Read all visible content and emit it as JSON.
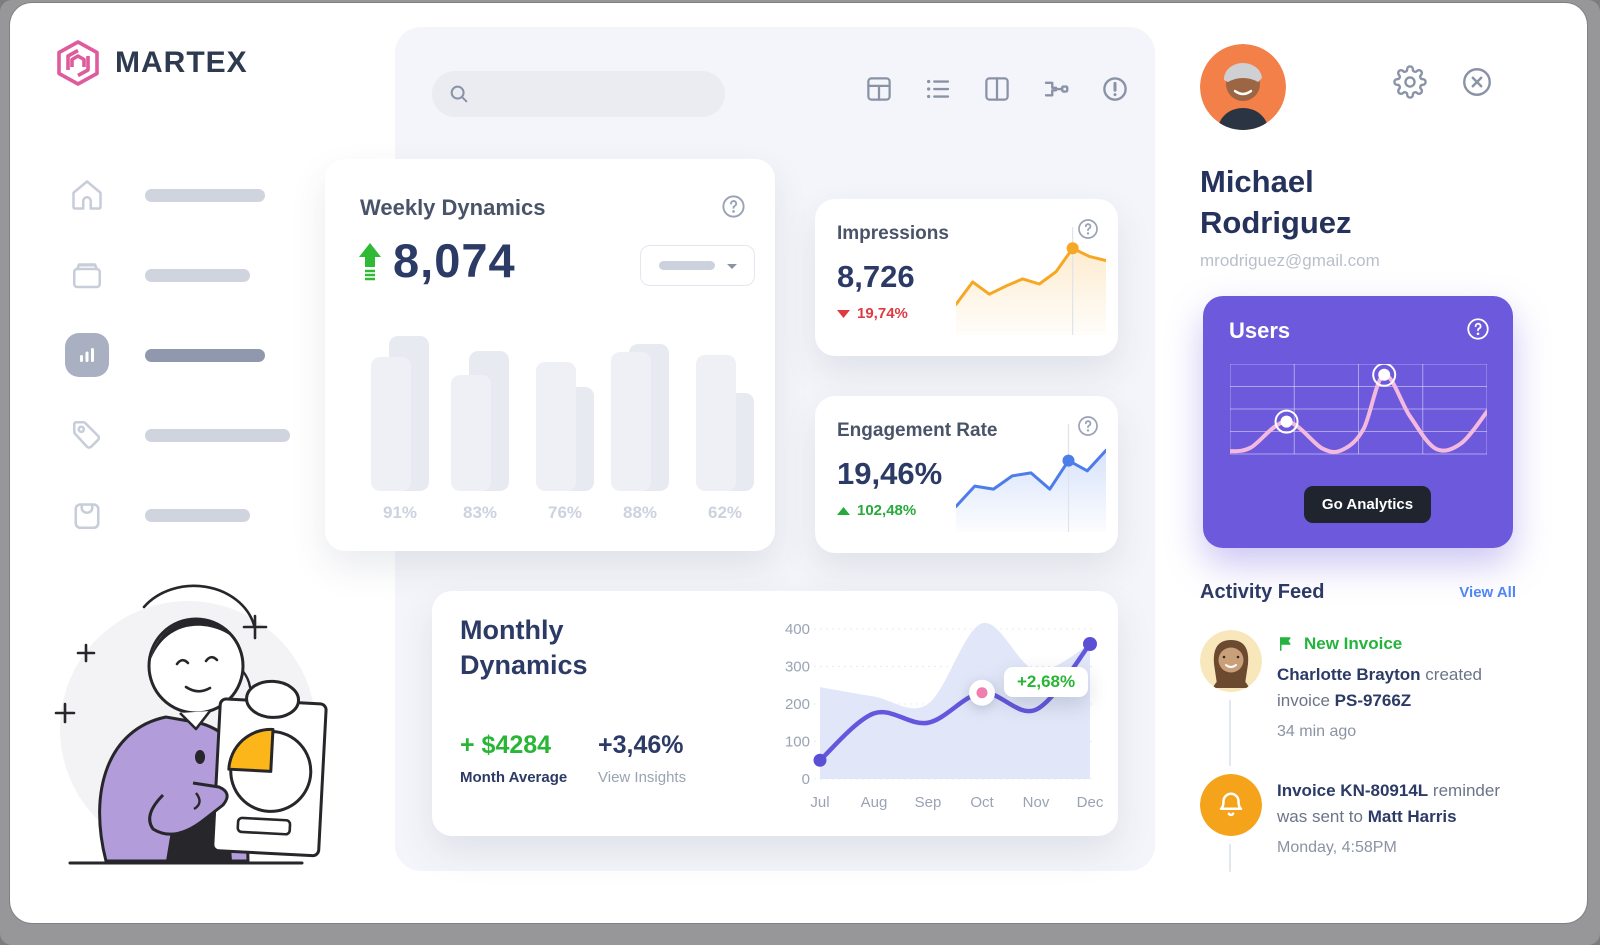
{
  "colors": {
    "accent_purple": "#6d59dc",
    "navy": "#2c3a66",
    "green": "#29b536",
    "red": "#dd3b41",
    "orange": "#f6a723",
    "blue": "#4c7de8",
    "link_blue": "#4f86f7",
    "pink": "#ee7fae",
    "logo_pink": "#de5c9d"
  },
  "logo": {
    "text": "MARTEX"
  },
  "sidebar": {
    "items": [
      {
        "icon": "home-icon",
        "active": false
      },
      {
        "icon": "archive-icon",
        "active": false
      },
      {
        "icon": "bar-chart-icon",
        "active": true
      },
      {
        "icon": "tag-icon",
        "active": false
      },
      {
        "icon": "shopping-bag-icon",
        "active": false
      }
    ]
  },
  "search": {
    "value": "",
    "placeholder": ""
  },
  "toolbar": {
    "icons": [
      "table-layout-icon",
      "list-icon",
      "columns-icon",
      "merge-icon",
      "alert-circle-icon"
    ]
  },
  "weekly": {
    "title": "Weekly Dynamics",
    "value": "8,074",
    "chart_data": {
      "type": "bar",
      "labels": [
        "91%",
        "83%",
        "76%",
        "88%",
        "62%"
      ],
      "front_heights": [
        134,
        116,
        129,
        139,
        136
      ],
      "back_heights": [
        155,
        140,
        104,
        147,
        98
      ]
    }
  },
  "impressions": {
    "title": "Impressions",
    "value": "8,726",
    "delta": "19,74%",
    "trend": "down",
    "chart_data": {
      "type": "area",
      "values": [
        30,
        52,
        40,
        48,
        55,
        50,
        62,
        85,
        77,
        73
      ],
      "highlight_index": 7,
      "color": "#f6a723"
    }
  },
  "engagement": {
    "title": "Engagement Rate",
    "value": "19,46%",
    "delta": "102,48%",
    "trend": "up",
    "chart_data": {
      "type": "area",
      "values": [
        25,
        45,
        42,
        55,
        58,
        42,
        70,
        60,
        80
      ],
      "highlight_index": 6,
      "color": "#4c7de8"
    }
  },
  "monthly": {
    "title": "Monthly\nDynamics",
    "amount": "+ $4284",
    "amount_label": "Month Average",
    "percent": "+3,46%",
    "percent_label": "View Insights",
    "tooltip": "+2,68%",
    "chart_data": {
      "type": "line",
      "x": [
        "Jul",
        "Aug",
        "Sep",
        "Oct",
        "Nov",
        "Dec"
      ],
      "line_values": [
        50,
        175,
        150,
        230,
        185,
        360
      ],
      "area_values": [
        245,
        220,
        200,
        415,
        290,
        360
      ],
      "yticks": [
        400,
        300,
        200,
        100,
        0
      ],
      "ylim": [
        0,
        430
      ],
      "highlight": {
        "month": "Oct",
        "label": "+2,68%"
      }
    }
  },
  "profile": {
    "first_name": "Michael",
    "last_name": "Rodriguez",
    "email": "mrodriguez@gmail.com"
  },
  "users": {
    "title": "Users",
    "button_label": "Go Analytics",
    "chart_data": {
      "type": "line",
      "points": [
        [
          0,
          3
        ],
        [
          8,
          7
        ],
        [
          22,
          36
        ],
        [
          36,
          6
        ],
        [
          44,
          5
        ],
        [
          52,
          28
        ],
        [
          60,
          88
        ],
        [
          70,
          42
        ],
        [
          80,
          6
        ],
        [
          90,
          12
        ],
        [
          100,
          47
        ]
      ],
      "dots": [
        [
          22,
          36
        ],
        [
          60,
          88
        ]
      ],
      "grid": {
        "rows": 4,
        "cols": 4
      }
    }
  },
  "activity": {
    "title": "Activity Feed",
    "view_all_label": "View All",
    "items": [
      {
        "avatar": "charlotte-avatar",
        "badge": "New Invoice",
        "badge_icon": "flag-icon",
        "segments": [
          {
            "text": "Charlotte Brayton",
            "bold": true
          },
          {
            "text": " created invoice ",
            "bold": false
          },
          {
            "text": "PS-9766Z",
            "bold": true
          }
        ],
        "time": "34  min ago"
      },
      {
        "avatar": "bell-icon",
        "badge": null,
        "segments": [
          {
            "text": "Invoice KN-80914L",
            "bold": true
          },
          {
            "text": " reminder was sent to ",
            "bold": false
          },
          {
            "text": "Matt Harris",
            "bold": true
          }
        ],
        "time": "Monday, 4:58PM"
      }
    ]
  }
}
